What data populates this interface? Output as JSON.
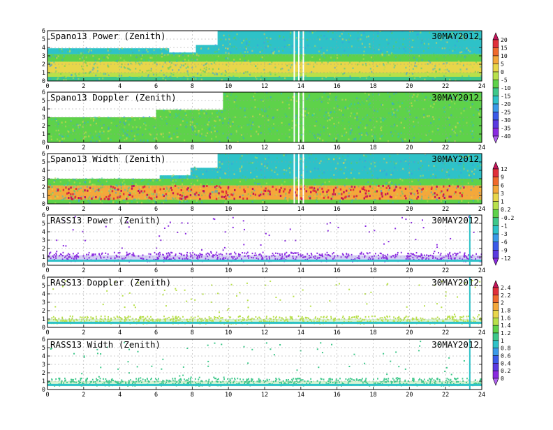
{
  "chart_data": {
    "type": "heatmap",
    "xlim": [
      0,
      24
    ],
    "ylim": [
      0,
      6
    ],
    "x_ticks": [
      "0",
      "2",
      "4",
      "6",
      "8",
      "10",
      "12",
      "14",
      "16",
      "18",
      "20",
      "22",
      "24"
    ],
    "y_ticks": [
      "0",
      "1",
      "2",
      "3",
      "4",
      "5",
      "6"
    ],
    "grid": "dashed",
    "colorbars": [
      {
        "id": "cb1",
        "ticks": [
          "20",
          "15",
          "10",
          "5",
          "0",
          "-5",
          "-10",
          "-15",
          "-20",
          "-25",
          "-30",
          "-35",
          "-40"
        ],
        "colors": [
          "#c4145a",
          "#e0303a",
          "#f06a2c",
          "#f4a83a",
          "#e8d64a",
          "#b8e04a",
          "#5ed24a",
          "#3ec88a",
          "#2ec2c8",
          "#3a9ae8",
          "#3a5ae8",
          "#5a3ae0",
          "#8a2ae0",
          "#b060f0"
        ]
      },
      {
        "id": "cb2",
        "ticks": [
          "12",
          "9",
          "6",
          "3",
          "1",
          "0.2",
          "-0.2",
          "-1",
          "-3",
          "-6",
          "-9",
          "-12"
        ],
        "colors": [
          "#c4145a",
          "#e0303a",
          "#f06a2c",
          "#f4a83a",
          "#e8d64a",
          "#b8e04a",
          "#5ed24a",
          "#3ec88a",
          "#2ec2c8",
          "#3a9ae8",
          "#3a5ae8",
          "#5a3ae0",
          "#8a2ae0"
        ]
      },
      {
        "id": "cb3",
        "ticks": [
          "2.4",
          "2.2",
          "2",
          "1.8",
          "1.6",
          "1.4",
          "1.2",
          "1",
          "0.8",
          "0.6",
          "0.4",
          "0.2",
          "0"
        ],
        "colors": [
          "#c4145a",
          "#e0303a",
          "#f06a2c",
          "#f4a83a",
          "#e8d64a",
          "#b8e04a",
          "#5ed24a",
          "#3ec88a",
          "#2ec2c8",
          "#3a9ae8",
          "#3a5ae8",
          "#5a3ae0",
          "#8a2ae0",
          "#b060f0"
        ]
      }
    ],
    "panels": [
      {
        "title": "Spano13 Power (Zenith)",
        "date": "30MAY2012",
        "kind": "wind",
        "top_profile": [
          [
            0,
            3.9
          ],
          [
            6.7,
            3.9
          ],
          [
            6.7,
            3.4
          ],
          [
            8.2,
            3.4
          ],
          [
            8.2,
            4.3
          ],
          [
            9.4,
            4.3
          ],
          [
            9.4,
            6
          ],
          [
            24,
            6
          ]
        ],
        "bands": [
          {
            "y0": 0.0,
            "y1": 0.5,
            "color": "#3ec88a"
          },
          {
            "y0": 0.5,
            "y1": 1.0,
            "color": "#b8e04a"
          },
          {
            "y0": 1.0,
            "y1": 2.3,
            "color": "#e8d64a"
          },
          {
            "y0": 2.3,
            "y1": 3.2,
            "color": "#5ed24a"
          },
          {
            "y0": 3.2,
            "y1": 6.0,
            "color": "#2ec2c8"
          }
        ],
        "gaps_x": [
          13.6,
          13.85,
          14.1
        ]
      },
      {
        "title": "Spano13 Doppler (Zenith)",
        "date": "30MAY2012",
        "kind": "wind",
        "top_profile": [
          [
            0,
            3.0
          ],
          [
            6.0,
            3.0
          ],
          [
            6.0,
            3.9
          ],
          [
            9.7,
            3.9
          ],
          [
            9.7,
            6
          ],
          [
            24,
            6
          ]
        ],
        "bands": [
          {
            "y0": 0.0,
            "y1": 6.0,
            "color": "#5ed24a"
          }
        ],
        "gaps_x": [
          13.6,
          13.85,
          14.1
        ]
      },
      {
        "title": "Spano13 Width (Zenith)",
        "date": "30MAY2012",
        "kind": "wind",
        "top_profile": [
          [
            0,
            3.0
          ],
          [
            6.2,
            3.0
          ],
          [
            6.2,
            3.4
          ],
          [
            7.9,
            3.4
          ],
          [
            7.9,
            4.3
          ],
          [
            9.4,
            4.3
          ],
          [
            9.4,
            6
          ],
          [
            24,
            6
          ]
        ],
        "bands": [
          {
            "y0": 0.0,
            "y1": 0.5,
            "color": "#5ed24a"
          },
          {
            "y0": 0.5,
            "y1": 2.2,
            "color": "#f4a83a"
          },
          {
            "y0": 2.2,
            "y1": 3.0,
            "color": "#5ed24a"
          },
          {
            "y0": 3.0,
            "y1": 6.0,
            "color": "#2ec2c8"
          }
        ],
        "gaps_x": [
          13.6,
          13.85,
          14.1
        ]
      },
      {
        "title": "RASS13 Power (Zenith)",
        "date": "30MAY2012",
        "kind": "rass",
        "base_color": "#5a3ae0",
        "dot_color": "#8a2ae0",
        "band_y": [
          0.4,
          1.2
        ],
        "spike_x": 23.3
      },
      {
        "title": "RASS13 Doppler (Zenith)",
        "date": "30MAY2012",
        "kind": "rass",
        "base_color": "#5ed24a",
        "dot_color": "#b8e04a",
        "band_y": [
          0.4,
          1.0
        ],
        "spike_x": 23.3
      },
      {
        "title": "RASS13 Width (Zenith)",
        "date": "30MAY2012",
        "kind": "rass",
        "base_color": "#5ed24a",
        "dot_color": "#3ec88a",
        "band_y": [
          0.4,
          1.0
        ],
        "spike_x": 23.3
      }
    ]
  }
}
